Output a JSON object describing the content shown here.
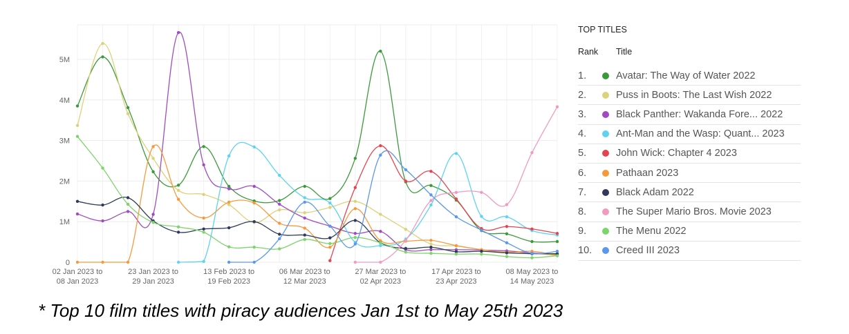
{
  "chart_data": {
    "type": "line",
    "title": "",
    "xlabel": "",
    "ylabel": "",
    "ylim": [
      0,
      5.85
    ],
    "y_ticks": [
      {
        "v": 0,
        "label": "0"
      },
      {
        "v": 1,
        "label": "1M"
      },
      {
        "v": 2,
        "label": "2M"
      },
      {
        "v": 3,
        "label": "3M"
      },
      {
        "v": 4,
        "label": "4M"
      },
      {
        "v": 5,
        "label": "5M"
      }
    ],
    "x_tick_labels": [
      [
        "02 Jan 2023 to",
        "08 Jan 2023"
      ],
      [
        "23 Jan 2023 to",
        "29 Jan 2023"
      ],
      [
        "13 Feb 2023 to",
        "19 Feb 2023"
      ],
      [
        "06 Mar 2023 to",
        "12 Mar 2023"
      ],
      [
        "27 Mar 2023 to",
        "02 Apr 2023"
      ],
      [
        "17 Apr 2023 to",
        "23 Apr 2023"
      ],
      [
        "08 May 2023 to",
        "14 May 2023"
      ]
    ],
    "grid": true,
    "legend_placement": "right",
    "series": [
      {
        "name": "Avatar: The Way of Water 2022",
        "color": "#3a9a3a",
        "values": [
          3.85,
          5.06,
          3.81,
          2.23,
          1.9,
          2.85,
          1.87,
          1.51,
          1.52,
          1.87,
          1.57,
          2.56,
          5.2,
          1.98,
          1.89,
          1.53,
          0.78,
          0.7,
          0.51,
          0.51
        ]
      },
      {
        "name": "Puss in Boots: The Last Wish 2022",
        "color": "#dcd27a",
        "values": [
          3.37,
          5.39,
          3.66,
          2.56,
          1.77,
          1.67,
          1.42,
          0.98,
          1.29,
          1.22,
          1.35,
          1.5,
          1.18,
          0.81,
          0.45,
          0.4,
          0.31,
          0.26,
          0.23,
          0.16
        ]
      },
      {
        "name": "Black Panther: Wakanda Fore... 2022",
        "color": "#a04cc0",
        "values": [
          1.19,
          1.02,
          1.25,
          1.18,
          5.66,
          2.4,
          1.81,
          1.87,
          1.43,
          1.09,
          0.89,
          0.71,
          0.76,
          0.31,
          0.31,
          0.31,
          0.3,
          0.28,
          0.23,
          0.2
        ]
      },
      {
        "name": "Ant-Man and the Wasp: Quant... 2023",
        "color": "#5dd3f0",
        "values": [
          null,
          null,
          null,
          null,
          0,
          0.02,
          2.62,
          2.84,
          2.14,
          1.59,
          1.46,
          0.49,
          0.41,
          0.57,
          1.41,
          2.68,
          1.13,
          1.12,
          0.78,
          0.67
        ]
      },
      {
        "name": "John Wick: Chapter 4 2023",
        "color": "#e5434f",
        "values": [
          null,
          null,
          null,
          null,
          null,
          null,
          null,
          null,
          null,
          null,
          0.04,
          1.84,
          2.87,
          2.0,
          2.24,
          1.56,
          0.83,
          0.88,
          0.82,
          0.71
        ]
      },
      {
        "name": "Pathaan 2023",
        "color": "#f59a3c",
        "values": [
          0,
          0,
          0,
          2.85,
          1.55,
          1.09,
          1.48,
          1.46,
          0.96,
          0.84,
          0.37,
          1.32,
          0.53,
          0.52,
          0.54,
          0.41,
          0.31,
          0.24,
          0.27,
          0.17
        ]
      },
      {
        "name": "Black Adam 2022",
        "color": "#2f3a5a",
        "values": [
          1.5,
          1.41,
          1.59,
          1.02,
          0.74,
          0.82,
          0.85,
          1.0,
          0.69,
          0.67,
          0.6,
          1.03,
          0.48,
          0.34,
          0.37,
          0.26,
          0.27,
          0.23,
          0.21,
          0.21
        ]
      },
      {
        "name": "The Super Mario Bros. Movie 2023",
        "color": "#f09ac0",
        "values": [
          null,
          null,
          null,
          null,
          null,
          null,
          null,
          null,
          null,
          null,
          null,
          0,
          0,
          0.54,
          1.52,
          1.72,
          1.72,
          1.42,
          2.7,
          3.83
        ]
      },
      {
        "name": "The Menu 2022",
        "color": "#7dd46a",
        "values": [
          3.1,
          2.32,
          1.43,
          0.98,
          0.87,
          0.74,
          0.38,
          0.37,
          0.33,
          0.56,
          0.46,
          0.61,
          0.48,
          0.25,
          0.22,
          0.2,
          0.2,
          0.14,
          0.11,
          0.16
        ]
      },
      {
        "name": "Creed III 2023",
        "color": "#5b97ea",
        "values": [
          null,
          null,
          null,
          null,
          null,
          null,
          0,
          0,
          0.58,
          1.48,
          0.89,
          0.45,
          2.64,
          2.28,
          1.66,
          1.12,
          0.79,
          0.48,
          0.22,
          0.27
        ]
      }
    ]
  },
  "legend": {
    "title": "TOP TITLES",
    "rank_header": "Rank",
    "title_header": "Title",
    "ranks": [
      "1.",
      "2.",
      "3.",
      "4.",
      "5.",
      "6.",
      "7.",
      "8.",
      "9.",
      "10."
    ]
  },
  "caption": "* Top 10 film titles with piracy audiences Jan 1st to May 25th 2023"
}
